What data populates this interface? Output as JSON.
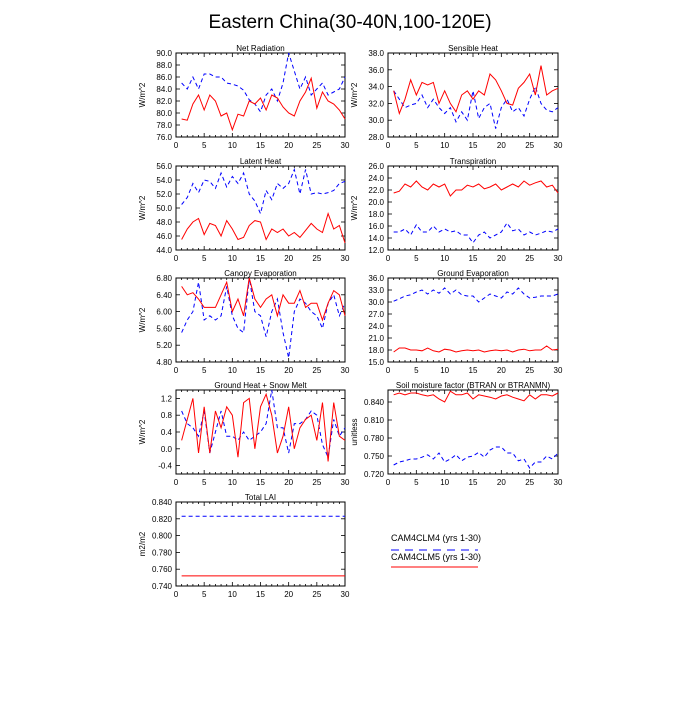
{
  "figure_title": "Eastern China(30-40N,100-120E)",
  "legend": [
    {
      "label": "CAM4CLM4 (yrs 1-30)",
      "color": "#0000ff",
      "dash": true
    },
    {
      "label": "CAM4CLM5 (yrs 1-30)",
      "color": "#ff0000",
      "dash": false
    }
  ],
  "chart_data": [
    {
      "type": "line",
      "title": "Net Radiation",
      "ylabel": "W/m^2",
      "xlim": [
        0,
        30
      ],
      "ylim": [
        76,
        90
      ],
      "yticks": [
        76,
        78,
        80,
        82,
        84,
        86,
        88,
        90
      ],
      "ytick_labels": [
        "76.0",
        "78.0",
        "80.0",
        "82.0",
        "84.0",
        "86.0",
        "88.0",
        "90.0"
      ],
      "xticks": [
        0,
        5,
        10,
        15,
        20,
        25,
        30
      ],
      "series": [
        {
          "name": "CAM4CLM4 (yrs 1-30)",
          "color": "#0000ff",
          "dash": true,
          "values": [
            85,
            84,
            86,
            84,
            86.5,
            86.5,
            86,
            86,
            85,
            84.8,
            84.5,
            83.8,
            82.2,
            81.5,
            80.2,
            83,
            84,
            82,
            85,
            90,
            87,
            84,
            86,
            83,
            84,
            85,
            83,
            83.5,
            84,
            86
          ]
        },
        {
          "name": "CAM4CLM5 (yrs 1-30)",
          "color": "#ff0000",
          "dash": false,
          "values": [
            79,
            78.8,
            81.5,
            83,
            80.5,
            83,
            82,
            79.5,
            80,
            77.2,
            79.8,
            79.5,
            82,
            81.5,
            82.5,
            80.5,
            83,
            82.5,
            81,
            80,
            79.5,
            82,
            83.5,
            85.8,
            80.8,
            83.5,
            82,
            81.5,
            80.5,
            79
          ]
        }
      ]
    },
    {
      "type": "line",
      "title": "Sensible Heat",
      "ylabel": "W/m^2",
      "xlim": [
        0,
        30
      ],
      "ylim": [
        28,
        38
      ],
      "yticks": [
        28,
        30,
        32,
        34,
        36,
        38
      ],
      "ytick_labels": [
        "28.0",
        "30.0",
        "32.0",
        "34.0",
        "36.0",
        "38.0"
      ],
      "xticks": [
        0,
        5,
        10,
        15,
        20,
        25,
        30
      ],
      "series": [
        {
          "name": "CAM4CLM4 (yrs 1-30)",
          "color": "#0000ff",
          "dash": true,
          "values": [
            33.5,
            32.5,
            31.5,
            31.8,
            32,
            33,
            31.5,
            32.5,
            31.5,
            30.8,
            31.5,
            29.8,
            31,
            30,
            33.5,
            30.2,
            31.5,
            32,
            29,
            31.5,
            32.5,
            31,
            31.5,
            30.5,
            32.5,
            34,
            32,
            31.2,
            31,
            31.5
          ]
        },
        {
          "name": "CAM4CLM5 (yrs 1-30)",
          "color": "#ff0000",
          "dash": false,
          "values": [
            33.5,
            30.8,
            32.5,
            34.8,
            33,
            34.5,
            34.2,
            34.5,
            32,
            33.5,
            32,
            31,
            33,
            33.5,
            32.5,
            33.5,
            33,
            35.5,
            34.8,
            33.5,
            32,
            31.8,
            33.8,
            34.5,
            35.5,
            33,
            36.5,
            33,
            33.5,
            33.8
          ]
        }
      ]
    },
    {
      "type": "line",
      "title": "Latent Heat",
      "ylabel": "W/m^2",
      "xlim": [
        0,
        30
      ],
      "ylim": [
        44,
        56
      ],
      "yticks": [
        44,
        46,
        48,
        50,
        52,
        54,
        56
      ],
      "ytick_labels": [
        "44.0",
        "46.0",
        "48.0",
        "50.0",
        "52.0",
        "54.0",
        "56.0"
      ],
      "xticks": [
        0,
        5,
        10,
        15,
        20,
        25,
        30
      ],
      "series": [
        {
          "name": "CAM4CLM4 (yrs 1-30)",
          "color": "#0000ff",
          "dash": true,
          "values": [
            50.5,
            51.5,
            53.5,
            52.2,
            54,
            53.8,
            52.8,
            55,
            53,
            54.5,
            53.5,
            55,
            52,
            51,
            49.2,
            52.5,
            51.2,
            53.5,
            52.8,
            53.5,
            55.5,
            52,
            55.5,
            52,
            52.2,
            52,
            52.2,
            52.5,
            53.5,
            53.8
          ]
        },
        {
          "name": "CAM4CLM5 (yrs 1-30)",
          "color": "#ff0000",
          "dash": false,
          "values": [
            45.5,
            47,
            48,
            48.5,
            46.2,
            47.8,
            47.5,
            46,
            48.2,
            47,
            45.5,
            45.8,
            47.5,
            48.2,
            48,
            45.5,
            47,
            46.5,
            47,
            46,
            46.5,
            45.8,
            46.8,
            47.8,
            47,
            46.5,
            49.2,
            47,
            47.5,
            45
          ]
        }
      ]
    },
    {
      "type": "line",
      "title": "Transpiration",
      "ylabel": "W/m^2",
      "xlim": [
        0,
        30
      ],
      "ylim": [
        12,
        26
      ],
      "yticks": [
        12,
        14,
        16,
        18,
        20,
        22,
        24,
        26
      ],
      "ytick_labels": [
        "12.0",
        "14.0",
        "16.0",
        "18.0",
        "20.0",
        "22.0",
        "24.0",
        "26.0"
      ],
      "xticks": [
        0,
        5,
        10,
        15,
        20,
        25,
        30
      ],
      "series": [
        {
          "name": "CAM4CLM4 (yrs 1-30)",
          "color": "#0000ff",
          "dash": true,
          "values": [
            15,
            15,
            15.5,
            14.5,
            16.2,
            15,
            15,
            16,
            15,
            15.5,
            15,
            15.2,
            14.5,
            14.5,
            13.2,
            14.5,
            15,
            14,
            14.5,
            15,
            16.5,
            15.2,
            15.5,
            14.5,
            15,
            14.5,
            14.8,
            15.2,
            15,
            15.5
          ]
        },
        {
          "name": "CAM4CLM5 (yrs 1-30)",
          "color": "#ff0000",
          "dash": false,
          "values": [
            21.5,
            21.8,
            23,
            22.5,
            23.5,
            22.5,
            22,
            23,
            22.5,
            23,
            21,
            22,
            22,
            22.8,
            22.5,
            23,
            22.2,
            22.5,
            23,
            22,
            22.5,
            23,
            22.5,
            23.5,
            22.8,
            23.2,
            23.5,
            22.5,
            22.8,
            21.5
          ]
        }
      ]
    },
    {
      "type": "line",
      "title": "Canopy Evaporation",
      "ylabel": "W/m^2",
      "xlim": [
        0,
        30
      ],
      "ylim": [
        4.8,
        6.8
      ],
      "yticks": [
        4.8,
        5.2,
        5.6,
        6.0,
        6.4,
        6.8
      ],
      "ytick_labels": [
        "4.80",
        "5.20",
        "5.60",
        "6.00",
        "6.40",
        "6.80"
      ],
      "xticks": [
        0,
        5,
        10,
        15,
        20,
        25,
        30
      ],
      "series": [
        {
          "name": "CAM4CLM4 (yrs 1-30)",
          "color": "#0000ff",
          "dash": true,
          "values": [
            5.5,
            5.8,
            6,
            6.7,
            5.8,
            5.9,
            5.8,
            5.9,
            6.6,
            5.9,
            5.6,
            5.5,
            6.8,
            6,
            5.9,
            5.4,
            6,
            6.3,
            5.5,
            4.9,
            6,
            6.3,
            6.2,
            6,
            5.9,
            5.6,
            6.2,
            6.4,
            5.9,
            6.2
          ]
        },
        {
          "name": "CAM4CLM5 (yrs 1-30)",
          "color": "#ff0000",
          "dash": false,
          "values": [
            6.6,
            6.4,
            6.45,
            6.3,
            6.1,
            6.1,
            6.1,
            6.4,
            6.7,
            6,
            6.3,
            5.9,
            6.8,
            6.3,
            6.1,
            6.3,
            6.4,
            5.9,
            6.4,
            6.2,
            6.2,
            6.5,
            6.1,
            6.2,
            6.2,
            5.8,
            6.2,
            6.5,
            6.4,
            5.9
          ]
        }
      ]
    },
    {
      "type": "line",
      "title": "Ground Evaporation",
      "ylabel": "",
      "xlim": [
        0,
        30
      ],
      "ylim": [
        15,
        36
      ],
      "yticks": [
        15,
        18,
        21,
        24,
        27,
        30,
        33,
        36
      ],
      "ytick_labels": [
        "15.0",
        "18.0",
        "21.0",
        "24.0",
        "27.0",
        "30.0",
        "33.0",
        "36.0"
      ],
      "xticks": [
        0,
        5,
        10,
        15,
        20,
        25,
        30
      ],
      "series": [
        {
          "name": "CAM4CLM4 (yrs 1-30)",
          "color": "#0000ff",
          "dash": true,
          "values": [
            30.2,
            30.8,
            31.5,
            31.8,
            32.5,
            33,
            32,
            33,
            32.2,
            33.5,
            32,
            33,
            31.8,
            31.5,
            31.5,
            30,
            31,
            32,
            31.5,
            31,
            32.5,
            32,
            33.5,
            32,
            31,
            31.2,
            31.5,
            31.5,
            31.5,
            32
          ]
        },
        {
          "name": "CAM4CLM5 (yrs 1-30)",
          "color": "#ff0000",
          "dash": false,
          "values": [
            17.5,
            18.5,
            18.5,
            18,
            18,
            17.8,
            18.5,
            17.8,
            17.5,
            18.2,
            18,
            17.5,
            17.8,
            18,
            17.8,
            18,
            17.5,
            17.8,
            18,
            17.8,
            18,
            17.5,
            18,
            18.2,
            17.8,
            18,
            18,
            19,
            18,
            18.2
          ]
        }
      ]
    },
    {
      "type": "line",
      "title": "Ground Heat + Snow Melt",
      "ylabel": "W/m^2",
      "xlim": [
        0,
        30
      ],
      "ylim": [
        -0.6,
        1.4
      ],
      "yticks": [
        -0.4,
        0.0,
        0.4,
        0.8,
        1.2
      ],
      "ytick_labels": [
        "-0.4",
        "0.0",
        "0.4",
        "0.8",
        "1.2"
      ],
      "xticks": [
        0,
        5,
        10,
        15,
        20,
        25,
        30
      ],
      "series": [
        {
          "name": "CAM4CLM4 (yrs 1-30)",
          "color": "#0000ff",
          "dash": true,
          "values": [
            0.9,
            0.6,
            0.5,
            0.3,
            0.9,
            -0.1,
            0.4,
            0.9,
            0.3,
            0.3,
            0.2,
            0.4,
            0.2,
            0.3,
            0.4,
            0.6,
            1.4,
            0.5,
            0.5,
            -0.1,
            0.6,
            0.6,
            0.7,
            0.9,
            0.8,
            0.1,
            -0.2,
            0.7,
            0.3,
            0.5
          ]
        },
        {
          "name": "CAM4CLM5 (yrs 1-30)",
          "color": "#ff0000",
          "dash": false,
          "values": [
            0.2,
            0.7,
            1.2,
            -0.1,
            1,
            -0.1,
            0.9,
            0.5,
            1,
            0.8,
            -0.2,
            1.1,
            1.2,
            0,
            1,
            1.3,
            0.8,
            -0.1,
            0.3,
            1,
            0,
            0.5,
            0.7,
            0.8,
            0.2,
            1.1,
            -0.3,
            1.1,
            0.3,
            0.2
          ]
        }
      ]
    },
    {
      "type": "line",
      "title": "Soil moisture factor (BTRAN or BTRANMN)",
      "ylabel": "unitless",
      "xlim": [
        0,
        30
      ],
      "ylim": [
        0.72,
        0.86
      ],
      "yticks": [
        0.72,
        0.75,
        0.78,
        0.81,
        0.84
      ],
      "ytick_labels": [
        "0.720",
        "0.750",
        "0.780",
        "0.810",
        "0.840"
      ],
      "xticks": [
        0,
        5,
        10,
        15,
        20,
        25,
        30
      ],
      "series": [
        {
          "name": "CAM4CLM4 (yrs 1-30)",
          "color": "#0000ff",
          "dash": true,
          "values": [
            0.735,
            0.74,
            0.742,
            0.745,
            0.745,
            0.748,
            0.752,
            0.745,
            0.755,
            0.74,
            0.745,
            0.752,
            0.742,
            0.748,
            0.75,
            0.756,
            0.748,
            0.76,
            0.765,
            0.765,
            0.755,
            0.755,
            0.742,
            0.745,
            0.73,
            0.74,
            0.74,
            0.75,
            0.745,
            0.755
          ]
        },
        {
          "name": "CAM4CLM5 (yrs 1-30)",
          "color": "#ff0000",
          "dash": false,
          "values": [
            0.852,
            0.855,
            0.852,
            0.855,
            0.855,
            0.852,
            0.85,
            0.852,
            0.845,
            0.84,
            0.858,
            0.852,
            0.852,
            0.855,
            0.845,
            0.852,
            0.85,
            0.848,
            0.845,
            0.85,
            0.852,
            0.848,
            0.845,
            0.842,
            0.852,
            0.845,
            0.852,
            0.852,
            0.85,
            0.855
          ]
        }
      ]
    },
    {
      "type": "line",
      "title": "Total LAI",
      "ylabel": "m2/m2",
      "xlim": [
        0,
        30
      ],
      "ylim": [
        0.74,
        0.84
      ],
      "yticks": [
        0.74,
        0.76,
        0.78,
        0.8,
        0.82,
        0.84
      ],
      "ytick_labels": [
        "0.740",
        "0.760",
        "0.780",
        "0.800",
        "0.820",
        "0.840"
      ],
      "xticks": [
        0,
        5,
        10,
        15,
        20,
        25,
        30
      ],
      "series": [
        {
          "name": "CAM4CLM4 (yrs 1-30)",
          "color": "#0000ff",
          "dash": true,
          "values": [
            0.823,
            0.823,
            0.823,
            0.823,
            0.823,
            0.823,
            0.823,
            0.823,
            0.823,
            0.823,
            0.823,
            0.823,
            0.823,
            0.823,
            0.823,
            0.823,
            0.823,
            0.823,
            0.823,
            0.823,
            0.823,
            0.823,
            0.823,
            0.823,
            0.823,
            0.823,
            0.823,
            0.823,
            0.823,
            0.823
          ]
        },
        {
          "name": "CAM4CLM5 (yrs 1-30)",
          "color": "#ff0000",
          "dash": false,
          "values": [
            0.752,
            0.752,
            0.752,
            0.752,
            0.752,
            0.752,
            0.752,
            0.752,
            0.752,
            0.752,
            0.752,
            0.752,
            0.752,
            0.752,
            0.752,
            0.752,
            0.752,
            0.752,
            0.752,
            0.752,
            0.752,
            0.752,
            0.752,
            0.752,
            0.752,
            0.752,
            0.752,
            0.752,
            0.752,
            0.752
          ]
        }
      ]
    }
  ]
}
